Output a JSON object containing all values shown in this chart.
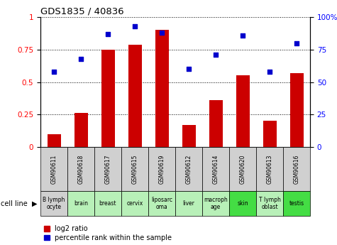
{
  "title": "GDS1835 / 40836",
  "gsm_labels": [
    "GSM90611",
    "GSM90618",
    "GSM90617",
    "GSM90615",
    "GSM90619",
    "GSM90612",
    "GSM90614",
    "GSM90620",
    "GSM90613",
    "GSM90616"
  ],
  "cell_lines": [
    "B lymph\nocyte",
    "brain",
    "breast",
    "cervix",
    "liposarc\noma",
    "liver",
    "macroph\nage",
    "skin",
    "T lymph\noblast",
    "testis"
  ],
  "gsm_cell_color": "#d0d0d0",
  "cell_line_colors": [
    "#d0d0d0",
    "#b8f0b8",
    "#b8f0b8",
    "#b8f0b8",
    "#b8f0b8",
    "#b8f0b8",
    "#b8f0b8",
    "#44dd44",
    "#b8f0b8",
    "#44dd44"
  ],
  "log2_ratio": [
    0.1,
    0.26,
    0.75,
    0.79,
    0.9,
    0.17,
    0.36,
    0.55,
    0.2,
    0.57
  ],
  "percentile_rank": [
    58,
    68,
    87,
    93,
    88,
    60,
    71,
    86,
    58,
    80
  ],
  "bar_color": "#cc0000",
  "dot_color": "#0000cc",
  "ylim_left": [
    0,
    1
  ],
  "ylim_right": [
    0,
    100
  ],
  "yticks_left": [
    0,
    0.25,
    0.5,
    0.75,
    1.0
  ],
  "ytick_labels_left": [
    "0",
    "0.25",
    "0.5",
    "0.75",
    "1"
  ],
  "ytick_labels_right": [
    "0",
    "25",
    "50",
    "75",
    "100%"
  ],
  "legend_items": [
    {
      "label": "log2 ratio",
      "color": "#cc0000"
    },
    {
      "label": "percentile rank within the sample",
      "color": "#0000cc"
    }
  ]
}
